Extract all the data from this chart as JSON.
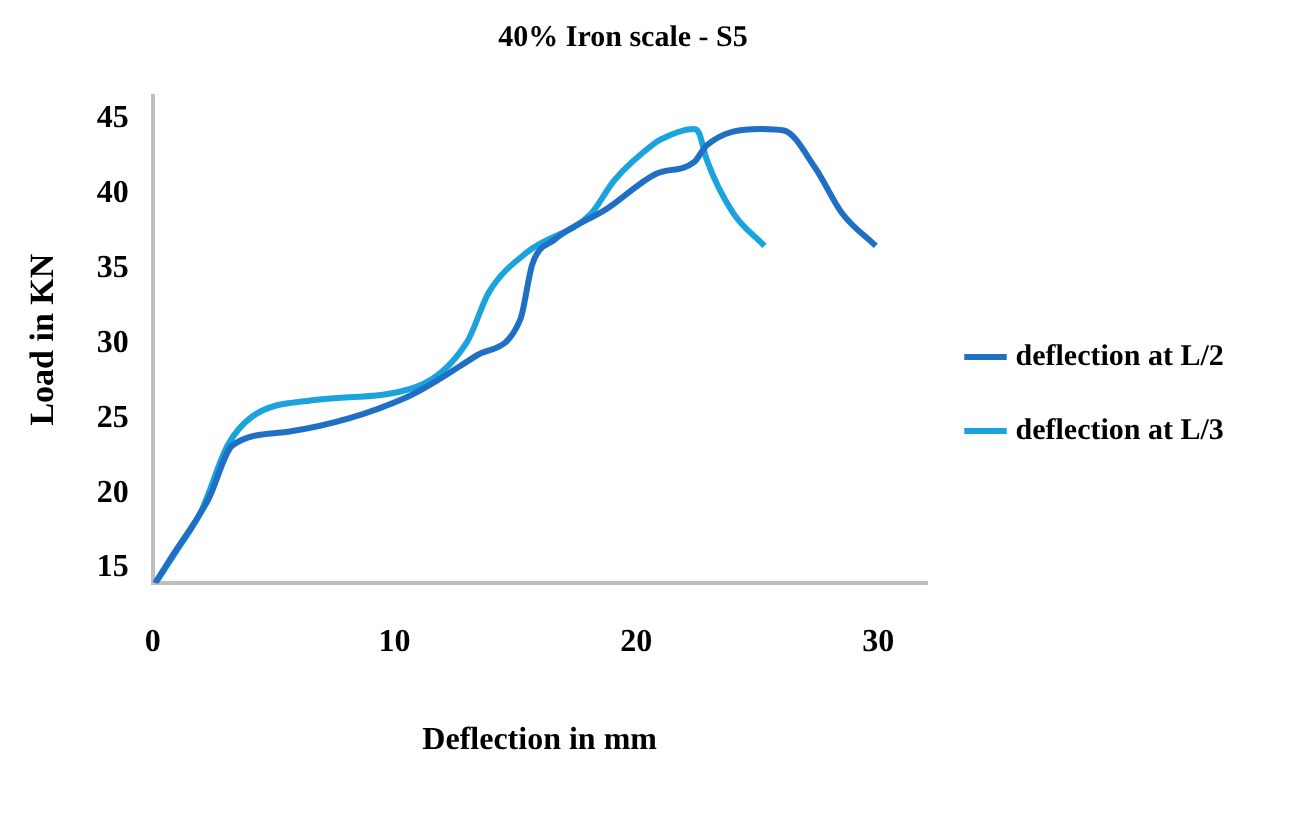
{
  "chart_data": {
    "type": "line",
    "title": "40% Iron scale - S5",
    "xlabel": "Deflection in mm",
    "ylabel": "Load in KN",
    "xlim": [
      0,
      32
    ],
    "xticks": [
      0,
      10,
      20,
      30
    ],
    "ylim": [
      14,
      46.5
    ],
    "yticks": [
      15,
      20,
      25,
      30,
      35,
      40,
      45
    ],
    "grid": false,
    "legend": "right",
    "marker": "none",
    "line_style": "solid",
    "series": [
      {
        "name": "deflection at L/2",
        "color": "#1f6fc5",
        "x": [
          0.1,
          0.8,
          2.3,
          3.3,
          5.6,
          10.5,
          13.4,
          15.2,
          15.7,
          16.6,
          18.8,
          20.8,
          22.4,
          22.9,
          25.1,
          26.1,
          27.4,
          28.5,
          29.9
        ],
        "values": [
          14,
          15.8,
          19.6,
          23.2,
          24.1,
          26.4,
          29.2,
          31.6,
          35.3,
          36.9,
          39,
          41.3,
          42.1,
          43.2,
          44.3,
          44.2,
          41.7,
          38.7,
          36.5
        ]
      },
      {
        "name": "deflection at L/3",
        "color": "#1aa3dc",
        "x": [
          0.1,
          1,
          2,
          3.1,
          4.1,
          6.6,
          10.9,
          13,
          13.9,
          15.5,
          18.1,
          19.1,
          20.8,
          21,
          22.4,
          22.6,
          22.9,
          24,
          25.3
        ],
        "values": [
          14,
          16.2,
          18.8,
          23.2,
          25.1,
          26.2,
          27.1,
          30.1,
          33.4,
          36.1,
          38.6,
          40.9,
          43.4,
          43.6,
          44.3,
          44,
          42.3,
          38.7,
          36.5
        ]
      }
    ]
  }
}
